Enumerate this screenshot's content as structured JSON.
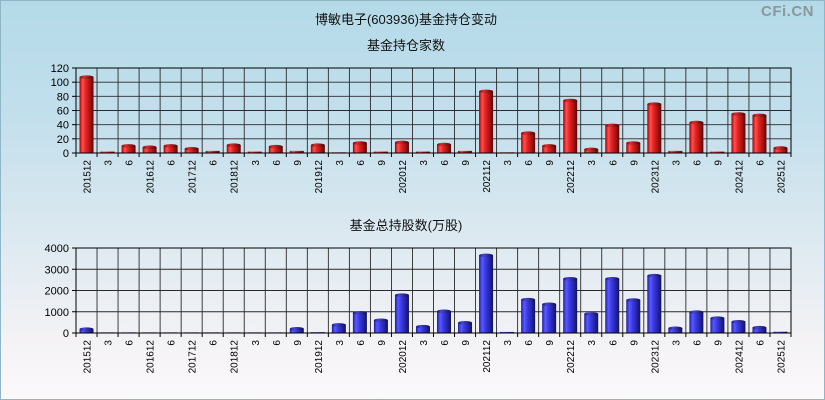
{
  "header": {
    "title": "博敏电子(603936)基金持仓变动",
    "watermark": "CFi.CN"
  },
  "chart_data": [
    {
      "type": "bar",
      "title": "基金持仓家数",
      "categories": [
        "201512",
        "3",
        "6",
        "201612",
        "6",
        "201712",
        "6",
        "201812",
        "3",
        "6",
        "9",
        "201912",
        "3",
        "6",
        "9",
        "202012",
        "3",
        "6",
        "9",
        "202112",
        "3",
        "6",
        "9",
        "202212",
        "3",
        "6",
        "9",
        "202312",
        "3",
        "6",
        "9",
        "202412",
        "6",
        "202512"
      ],
      "values": [
        107,
        2,
        10,
        8,
        10,
        6,
        3,
        11,
        2,
        9,
        3,
        11,
        1,
        14,
        2,
        15,
        2,
        12,
        3,
        87,
        1,
        28,
        10,
        74,
        5,
        39,
        14,
        69,
        3,
        43,
        2,
        55,
        53,
        7
      ],
      "xlabel": "",
      "ylabel": "",
      "ylim": [
        0,
        120
      ],
      "yticks": [
        0,
        20,
        40,
        60,
        80,
        100,
        120
      ],
      "grid": true,
      "legend": "none",
      "bar_color": "#e62222"
    },
    {
      "type": "bar",
      "title": "基金总持股数(万股)",
      "categories": [
        "201512",
        "3",
        "6",
        "201612",
        "6",
        "201712",
        "6",
        "201812",
        "3",
        "6",
        "9",
        "201912",
        "3",
        "6",
        "9",
        "202012",
        "3",
        "6",
        "9",
        "202112",
        "3",
        "6",
        "9",
        "202212",
        "3",
        "6",
        "9",
        "202312",
        "3",
        "6",
        "9",
        "202412",
        "6",
        "202512"
      ],
      "values": [
        180,
        30,
        30,
        30,
        30,
        30,
        30,
        30,
        30,
        30,
        200,
        40,
        380,
        950,
        600,
        1780,
        300,
        1020,
        480,
        3650,
        50,
        1570,
        1350,
        2550,
        900,
        2550,
        1550,
        2700,
        220,
        980,
        700,
        530,
        250,
        60
      ],
      "xlabel": "",
      "ylabel": "",
      "ylim": [
        0,
        4000
      ],
      "yticks": [
        0,
        1000,
        2000,
        3000,
        4000
      ],
      "grid": true,
      "legend": "none",
      "bar_color": "#3a3ae6"
    }
  ]
}
